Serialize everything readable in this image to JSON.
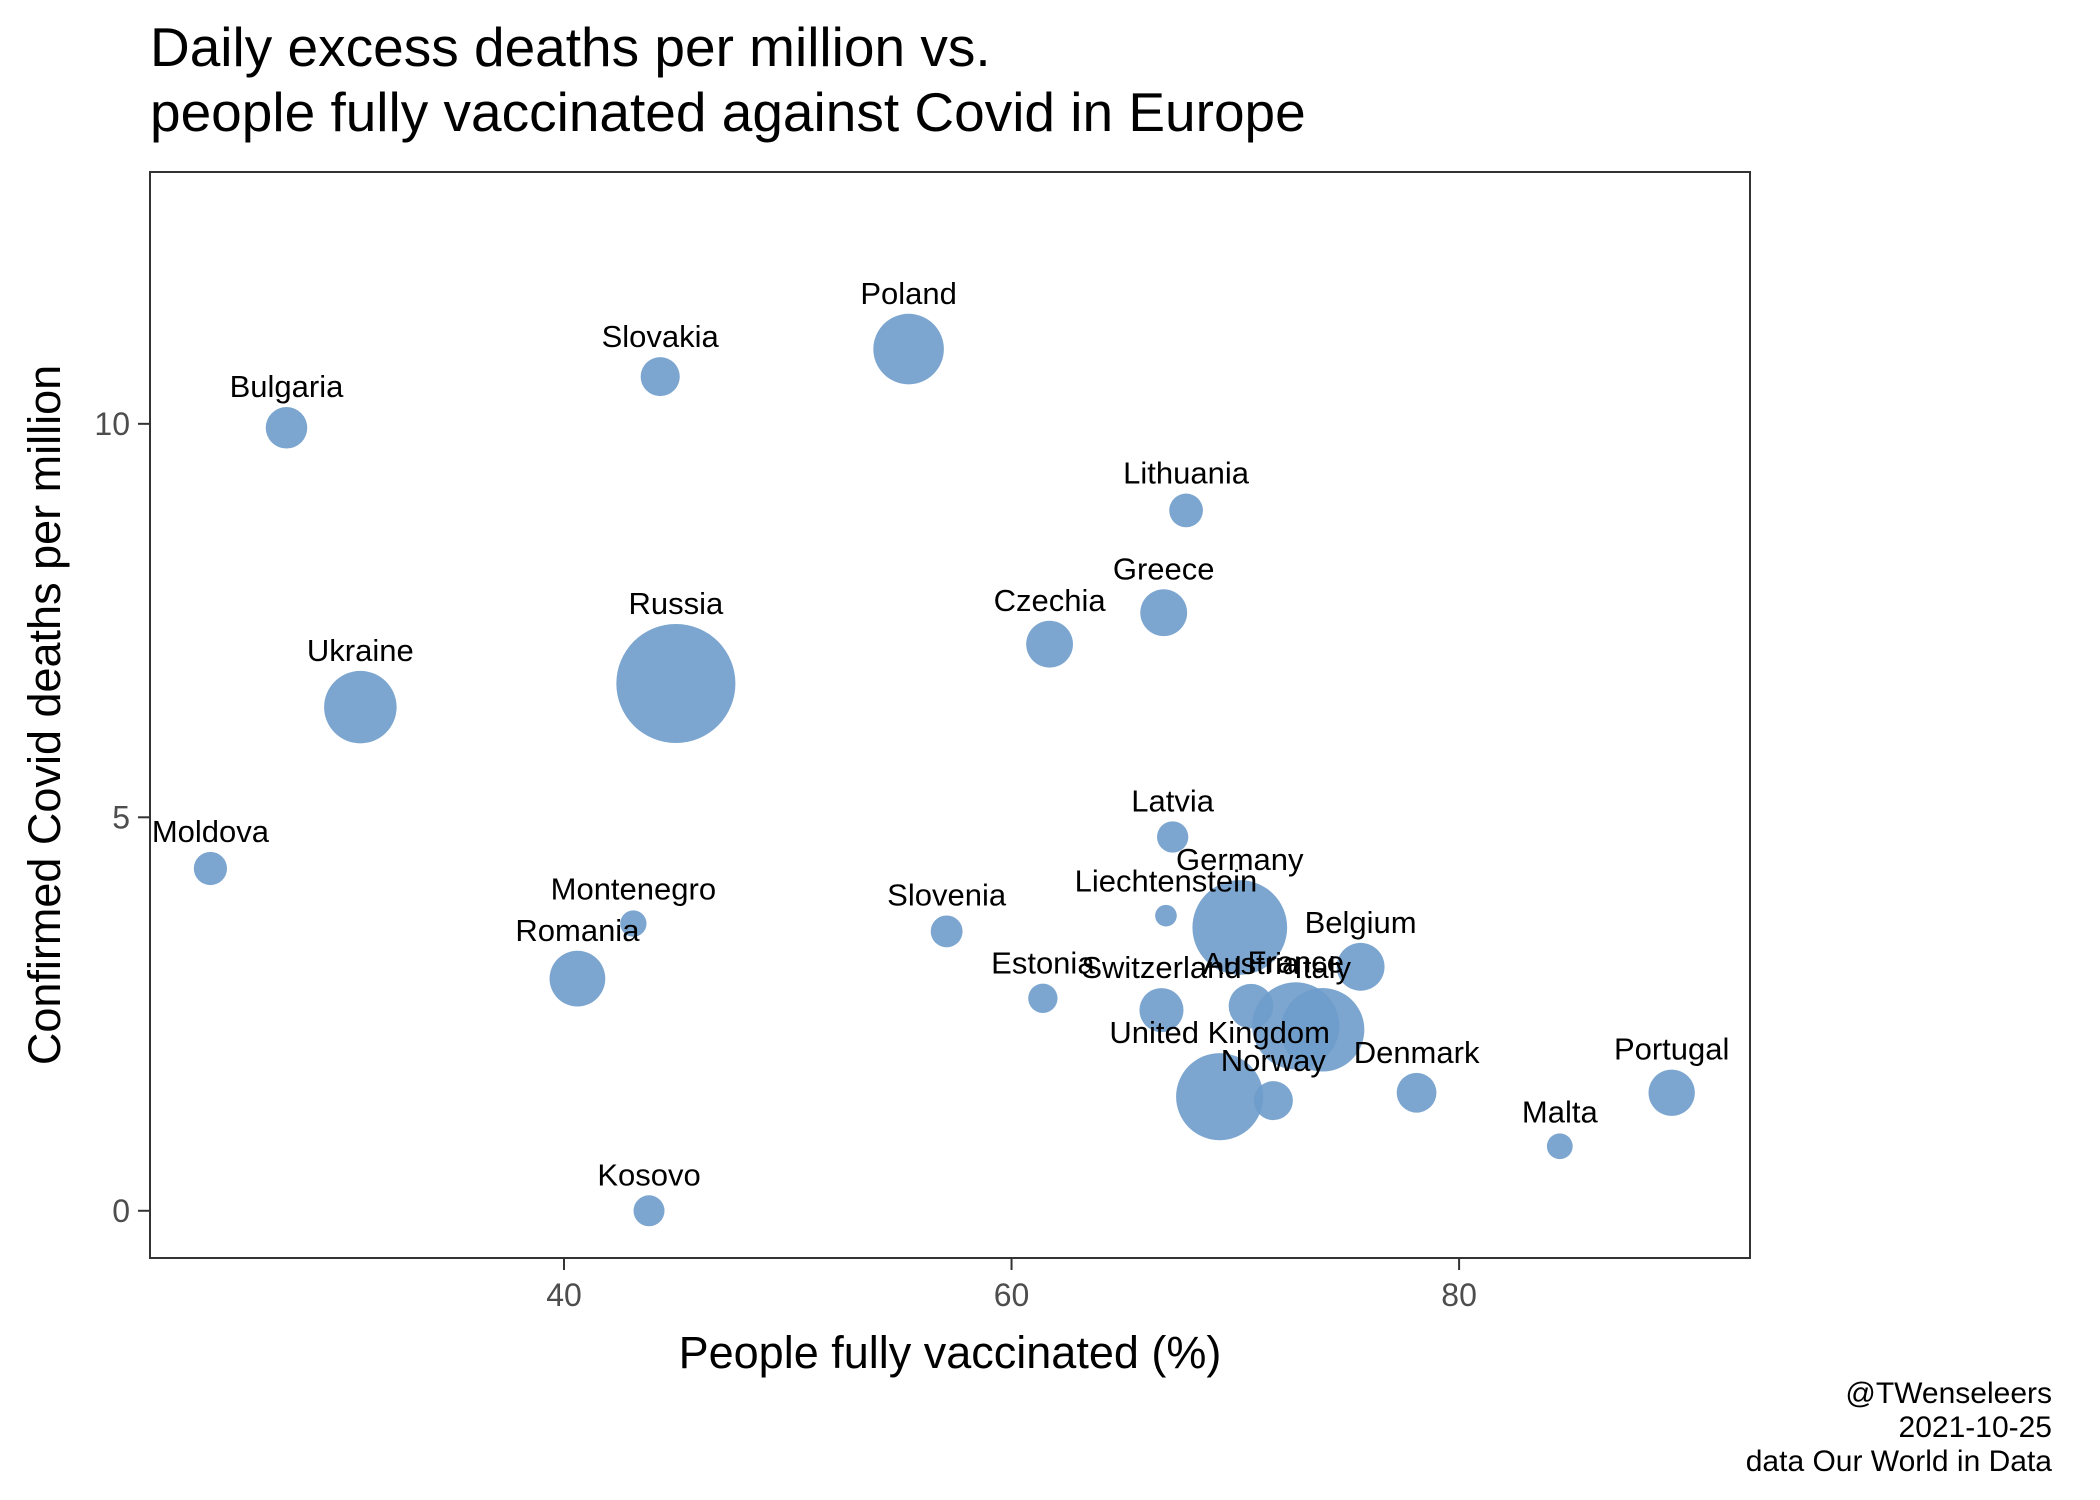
{
  "chart_data": {
    "type": "scatter",
    "title_lines": [
      "Daily excess deaths per million vs.",
      "people fully vaccinated against Covid in Europe"
    ],
    "xlabel": "People fully vaccinated (%)",
    "ylabel": "Confirmed Covid deaths per million",
    "xlim": [
      21.5,
      93
    ],
    "ylim": [
      -0.6,
      13.2
    ],
    "x_ticks": [
      40,
      60,
      80
    ],
    "y_ticks": [
      0,
      5,
      10
    ],
    "grid": false,
    "legend": "none",
    "point_color": "#6e9ccb",
    "caption_lines": [
      "@TWenseleers",
      "2021-10-25",
      "data Our World in Data"
    ],
    "points": [
      {
        "label": "Bulgaria",
        "x": 27.6,
        "y": 9.95,
        "size": 6.9
      },
      {
        "label": "Slovakia",
        "x": 44.3,
        "y": 10.6,
        "size": 5.4
      },
      {
        "label": "Poland",
        "x": 55.4,
        "y": 10.95,
        "size": 38
      },
      {
        "label": "Lithuania",
        "x": 67.8,
        "y": 8.9,
        "size": 2.8
      },
      {
        "label": "Greece",
        "x": 66.8,
        "y": 7.6,
        "size": 10.7
      },
      {
        "label": "Czechia",
        "x": 61.7,
        "y": 7.2,
        "size": 10.7
      },
      {
        "label": "Russia",
        "x": 45.0,
        "y": 6.7,
        "size": 146
      },
      {
        "label": "Ukraine",
        "x": 30.9,
        "y": 6.4,
        "size": 41
      },
      {
        "label": "Moldova",
        "x": 24.2,
        "y": 4.35,
        "size": 2.6
      },
      {
        "label": "Latvia",
        "x": 67.2,
        "y": 4.75,
        "size": 1.9
      },
      {
        "label": "Montenegro",
        "x": 43.1,
        "y": 3.65,
        "size": 0.6
      },
      {
        "label": "Slovenia",
        "x": 57.1,
        "y": 3.55,
        "size": 2.1
      },
      {
        "label": "Liechtenstein",
        "x": 66.9,
        "y": 3.75,
        "size": 0.04
      },
      {
        "label": "Germany",
        "x": 70.2,
        "y": 3.6,
        "size": 83
      },
      {
        "label": "Romania",
        "x": 40.6,
        "y": 2.95,
        "size": 19
      },
      {
        "label": "Belgium",
        "x": 75.6,
        "y": 3.1,
        "size": 11.5
      },
      {
        "label": "Estonia",
        "x": 61.4,
        "y": 2.7,
        "size": 1.3
      },
      {
        "label": "Switzerland",
        "x": 66.7,
        "y": 2.55,
        "size": 8.6
      },
      {
        "label": "Austria",
        "x": 70.7,
        "y": 2.6,
        "size": 9.0
      },
      {
        "label": "France",
        "x": 72.7,
        "y": 2.35,
        "size": 67
      },
      {
        "label": "Italy",
        "x": 73.9,
        "y": 2.3,
        "size": 60
      },
      {
        "label": "United Kingdom",
        "x": 69.3,
        "y": 1.45,
        "size": 67
      },
      {
        "label": "Norway",
        "x": 71.7,
        "y": 1.4,
        "size": 5.4
      },
      {
        "label": "Denmark",
        "x": 78.1,
        "y": 1.5,
        "size": 5.8
      },
      {
        "label": "Portugal",
        "x": 89.5,
        "y": 1.5,
        "size": 10.3
      },
      {
        "label": "Malta",
        "x": 84.5,
        "y": 0.82,
        "size": 0.5
      },
      {
        "label": "Kosovo",
        "x": 43.8,
        "y": 0.0,
        "size": 1.8
      }
    ]
  }
}
